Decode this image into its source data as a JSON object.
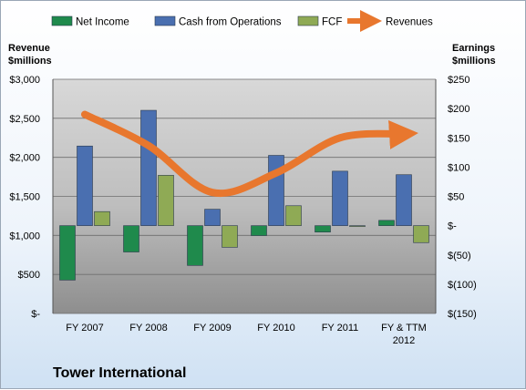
{
  "chart_data": {
    "type": "bar",
    "categories": [
      "FY 2007",
      "FY 2008",
      "FY 2009",
      "FY 2010",
      "FY 2011",
      "FY & TTM 2012"
    ],
    "company_name": "Tower International",
    "left_axis": {
      "title": [
        "Revenue",
        "$millions"
      ],
      "ylim": [
        0,
        3000
      ],
      "ticks": [
        0,
        500,
        1000,
        1500,
        2000,
        2500,
        3000
      ],
      "tick_labels": [
        "$-",
        "$500",
        "$1,000",
        "$1,500",
        "$2,000",
        "$2,500",
        "$3,000"
      ]
    },
    "right_axis": {
      "title": [
        "Earnings",
        "$millions"
      ],
      "ylim": [
        -150,
        250
      ],
      "ticks": [
        -150,
        -100,
        -50,
        0,
        50,
        100,
        150,
        200,
        250
      ],
      "tick_labels": [
        "$(150)",
        "$(100)",
        "$(50)",
        "$-",
        "$50",
        "$100",
        "$150",
        "$200",
        "$250"
      ]
    },
    "series": [
      {
        "name": "Net Income",
        "type": "bar",
        "axis": "right",
        "color": "#1f8a4c",
        "values": [
          -93,
          -45,
          -68,
          -17,
          -11,
          9
        ]
      },
      {
        "name": "Cash from Operations",
        "type": "bar",
        "axis": "right",
        "color": "#4a6fb0",
        "values": [
          136,
          197,
          28,
          120,
          93,
          87
        ]
      },
      {
        "name": "FCF",
        "type": "bar",
        "axis": "right",
        "color": "#8faa55",
        "values": [
          24,
          86,
          -37,
          34,
          -1,
          -29
        ]
      },
      {
        "name": "Revenues",
        "type": "line",
        "axis": "left",
        "color": "#e8772e",
        "values": [
          2550,
          2150,
          1550,
          1800,
          2250,
          2300
        ]
      }
    ],
    "grid": true,
    "legend_position": "top"
  }
}
